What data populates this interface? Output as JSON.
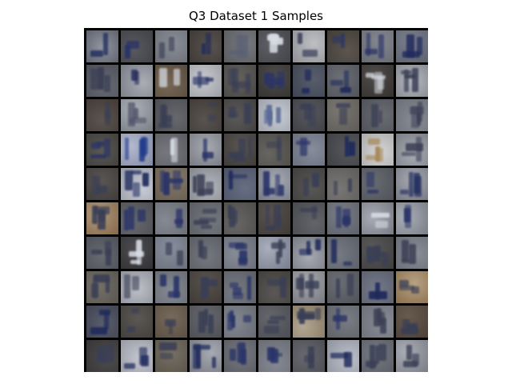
{
  "title": "Q3 Dataset 1 Samples",
  "grid": {
    "rows": 10,
    "cols": 10
  },
  "palette": {
    "frame": "#000000",
    "blue_ink": "#1f2a5c",
    "navy_ink": "#2a3468",
    "grey_light": "#a7acb6",
    "grey_mid": "#6f737c",
    "grey_dark": "#3d3c3c",
    "brown": "#5a4a3a",
    "tan": "#b08a5a",
    "pale": "#d7dbe3"
  },
  "tiles": [
    {
      "bg": "#6d7380",
      "ink": "#1f2a5c",
      "tone": "light"
    },
    {
      "bg": "#4b4c52",
      "ink": "#2a3468",
      "tone": "dark"
    },
    {
      "bg": "#7f838c",
      "ink": "#3a3f55",
      "tone": "mid"
    },
    {
      "bg": "#4a4440",
      "ink": "#1f2a5c",
      "tone": "dark"
    },
    {
      "bg": "#6b6d72",
      "ink": "#5b6174",
      "tone": "mid"
    },
    {
      "bg": "#4f5057",
      "ink": "#d7dbe3",
      "tone": "dark"
    },
    {
      "bg": "#a9aab0",
      "ink": "#2c3350",
      "tone": "light"
    },
    {
      "bg": "#4e4740",
      "ink": "#2a3468",
      "tone": "dark"
    },
    {
      "bg": "#7a7d86",
      "ink": "#2a3468",
      "tone": "mid"
    },
    {
      "bg": "#6e7382",
      "ink": "#1f2a5c",
      "tone": "mid"
    },
    {
      "bg": "#5a5d66",
      "ink": "#3a3f55",
      "tone": "mid"
    },
    {
      "bg": "#8e929c",
      "ink": "#23295a",
      "tone": "light"
    },
    {
      "bg": "#6a5a48",
      "ink": "#d7dbe3",
      "tone": "dark"
    },
    {
      "bg": "#b7bac1",
      "ink": "#2a3468",
      "tone": "light"
    },
    {
      "bg": "#565450",
      "ink": "#3a3f55",
      "tone": "dark"
    },
    {
      "bg": "#3f3d3b",
      "ink": "#2a3468",
      "tone": "dark"
    },
    {
      "bg": "#4a5060",
      "ink": "#1f2a5c",
      "tone": "dark"
    },
    {
      "bg": "#5f626a",
      "ink": "#1f2a5c",
      "tone": "mid"
    },
    {
      "bg": "#3e3a38",
      "ink": "#d7dbe3",
      "tone": "dark"
    },
    {
      "bg": "#9fa3ac",
      "ink": "#3a3f55",
      "tone": "light"
    },
    {
      "bg": "#4d4540",
      "ink": "#3a3f55",
      "tone": "dark"
    },
    {
      "bg": "#8f949e",
      "ink": "#4b5166",
      "tone": "light"
    },
    {
      "bg": "#595b60",
      "ink": "#3a3f55",
      "tone": "mid"
    },
    {
      "bg": "#4b4541",
      "ink": "#3a3f55",
      "tone": "dark"
    },
    {
      "bg": "#4e4c4b",
      "ink": "#3a3f55",
      "tone": "dark"
    },
    {
      "bg": "#b7bcc6",
      "ink": "#5b6b96",
      "tone": "light"
    },
    {
      "bg": "#4a4c52",
      "ink": "#3a3f55",
      "tone": "dark"
    },
    {
      "bg": "#6f6b66",
      "ink": "#3a3f55",
      "tone": "mid"
    },
    {
      "bg": "#5e6068",
      "ink": "#3a3f55",
      "tone": "mid"
    },
    {
      "bg": "#7e828b",
      "ink": "#3a3f55",
      "tone": "mid"
    },
    {
      "bg": "#4d4b46",
      "ink": "#2a3468",
      "tone": "dark"
    },
    {
      "bg": "#9aa3c0",
      "ink": "#1f3a8c",
      "tone": "light"
    },
    {
      "bg": "#6a6c72",
      "ink": "#d7dbe3",
      "tone": "mid"
    },
    {
      "bg": "#8b8f98",
      "ink": "#2a3468",
      "tone": "light"
    },
    {
      "bg": "#4a4642",
      "ink": "#3a3f55",
      "tone": "dark"
    },
    {
      "bg": "#5a5853",
      "ink": "#3a3f55",
      "tone": "mid"
    },
    {
      "bg": "#7c8393",
      "ink": "#2a3468",
      "tone": "mid"
    },
    {
      "bg": "#4a4b50",
      "ink": "#1f2a5c",
      "tone": "dark"
    },
    {
      "bg": "#c8c8c8",
      "ink": "#a78a5a",
      "tone": "light"
    },
    {
      "bg": "#8e929b",
      "ink": "#3a3f55",
      "tone": "light"
    },
    {
      "bg": "#4b4745",
      "ink": "#3a3f55",
      "tone": "dark"
    },
    {
      "bg": "#b4b9c6",
      "ink": "#1f2a5c",
      "tone": "light"
    },
    {
      "bg": "#7a6e5e",
      "ink": "#2a3468",
      "tone": "mid"
    },
    {
      "bg": "#9a9ea6",
      "ink": "#3a3f55",
      "tone": "light"
    },
    {
      "bg": "#5a6278",
      "ink": "#1f2a5c",
      "tone": "mid"
    },
    {
      "bg": "#8a8f9c",
      "ink": "#2a3468",
      "tone": "light"
    },
    {
      "bg": "#4b4a48",
      "ink": "#3a3f55",
      "tone": "dark"
    },
    {
      "bg": "#6e6c6a",
      "ink": "#3a3f55",
      "tone": "mid"
    },
    {
      "bg": "#5d6068",
      "ink": "#2a3468",
      "tone": "mid"
    },
    {
      "bg": "#8a8e98",
      "ink": "#1f2a5c",
      "tone": "light"
    },
    {
      "bg": "#9a7a55",
      "ink": "#3a3f55",
      "tone": "light"
    },
    {
      "bg": "#5b5d63",
      "ink": "#2a3468",
      "tone": "mid"
    },
    {
      "bg": "#7b7f88",
      "ink": "#2a3468",
      "tone": "mid"
    },
    {
      "bg": "#6a6d74",
      "ink": "#3a3f55",
      "tone": "mid"
    },
    {
      "bg": "#5b5a58",
      "ink": "#3a3f55",
      "tone": "mid"
    },
    {
      "bg": "#4a4440",
      "ink": "#3a3f55",
      "tone": "dark"
    },
    {
      "bg": "#55575c",
      "ink": "#3a3f55",
      "tone": "mid"
    },
    {
      "bg": "#6e727c",
      "ink": "#2a3468",
      "tone": "mid"
    },
    {
      "bg": "#8b8f9a",
      "ink": "#d7dbe3",
      "tone": "light"
    },
    {
      "bg": "#8e939e",
      "ink": "#2a3468",
      "tone": "light"
    },
    {
      "bg": "#5b5e66",
      "ink": "#3a3f55",
      "tone": "mid"
    },
    {
      "bg": "#3c3c40",
      "ink": "#d7dbe3",
      "tone": "dark"
    },
    {
      "bg": "#7f8594",
      "ink": "#3a3f55",
      "tone": "mid"
    },
    {
      "bg": "#6a6d75",
      "ink": "#3a3f55",
      "tone": "mid"
    },
    {
      "bg": "#7c818d",
      "ink": "#2a3468",
      "tone": "mid"
    },
    {
      "bg": "#8c93a5",
      "ink": "#3a3f55",
      "tone": "light"
    },
    {
      "bg": "#8a8e98",
      "ink": "#1f2a5c",
      "tone": "light"
    },
    {
      "bg": "#6c707a",
      "ink": "#1f2a5c",
      "tone": "mid"
    },
    {
      "bg": "#4a4a4a",
      "ink": "#3a3f55",
      "tone": "dark"
    },
    {
      "bg": "#7d828c",
      "ink": "#3a3f55",
      "tone": "mid"
    },
    {
      "bg": "#6a655e",
      "ink": "#3a3f55",
      "tone": "mid"
    },
    {
      "bg": "#a9adb6",
      "ink": "#3a3f55",
      "tone": "light"
    },
    {
      "bg": "#7b8089",
      "ink": "#2a3468",
      "tone": "mid"
    },
    {
      "bg": "#4a4440",
      "ink": "#3a3f55",
      "tone": "dark"
    },
    {
      "bg": "#6b6f78",
      "ink": "#2a3468",
      "tone": "mid"
    },
    {
      "bg": "#4d4a47",
      "ink": "#3a3f55",
      "tone": "dark"
    },
    {
      "bg": "#8a8d94",
      "ink": "#3a3f55",
      "tone": "light"
    },
    {
      "bg": "#5e6168",
      "ink": "#3a3f55",
      "tone": "mid"
    },
    {
      "bg": "#6a6f80",
      "ink": "#1f2a5c",
      "tone": "mid"
    },
    {
      "bg": "#a0825a",
      "ink": "#3a3f55",
      "tone": "light"
    },
    {
      "bg": "#4c4f60",
      "ink": "#1f2a5c",
      "tone": "dark"
    },
    {
      "bg": "#4d4a46",
      "ink": "#3a3f55",
      "tone": "dark"
    },
    {
      "bg": "#6b5e4e",
      "ink": "#3a3f55",
      "tone": "mid"
    },
    {
      "bg": "#5a5c62",
      "ink": "#3a3f55",
      "tone": "mid"
    },
    {
      "bg": "#7a7e88",
      "ink": "#2a3468",
      "tone": "mid"
    },
    {
      "bg": "#585a60",
      "ink": "#3a3f55",
      "tone": "mid"
    },
    {
      "bg": "#9a8a70",
      "ink": "#3a3f55",
      "tone": "light"
    },
    {
      "bg": "#6f727a",
      "ink": "#2a3468",
      "tone": "mid"
    },
    {
      "bg": "#7f838c",
      "ink": "#3a3f55",
      "tone": "mid"
    },
    {
      "bg": "#5a4c40",
      "ink": "#3a3f55",
      "tone": "dark"
    },
    {
      "bg": "#403e3e",
      "ink": "#3a3f55",
      "tone": "dark"
    },
    {
      "bg": "#b1b5bf",
      "ink": "#1f2a5c",
      "tone": "light"
    },
    {
      "bg": "#6b6458",
      "ink": "#3a3f55",
      "tone": "mid"
    },
    {
      "bg": "#8a8e98",
      "ink": "#1f2a5c",
      "tone": "light"
    },
    {
      "bg": "#6a6d74",
      "ink": "#2a3468",
      "tone": "mid"
    },
    {
      "bg": "#7b7f89",
      "ink": "#2a3468",
      "tone": "mid"
    },
    {
      "bg": "#5a5c63",
      "ink": "#3a3f55",
      "tone": "mid"
    },
    {
      "bg": "#a7acb8",
      "ink": "#1f2a5c",
      "tone": "light"
    },
    {
      "bg": "#6b6f78",
      "ink": "#3a3f55",
      "tone": "mid"
    },
    {
      "bg": "#8e929c",
      "ink": "#3a3f55",
      "tone": "light"
    }
  ]
}
